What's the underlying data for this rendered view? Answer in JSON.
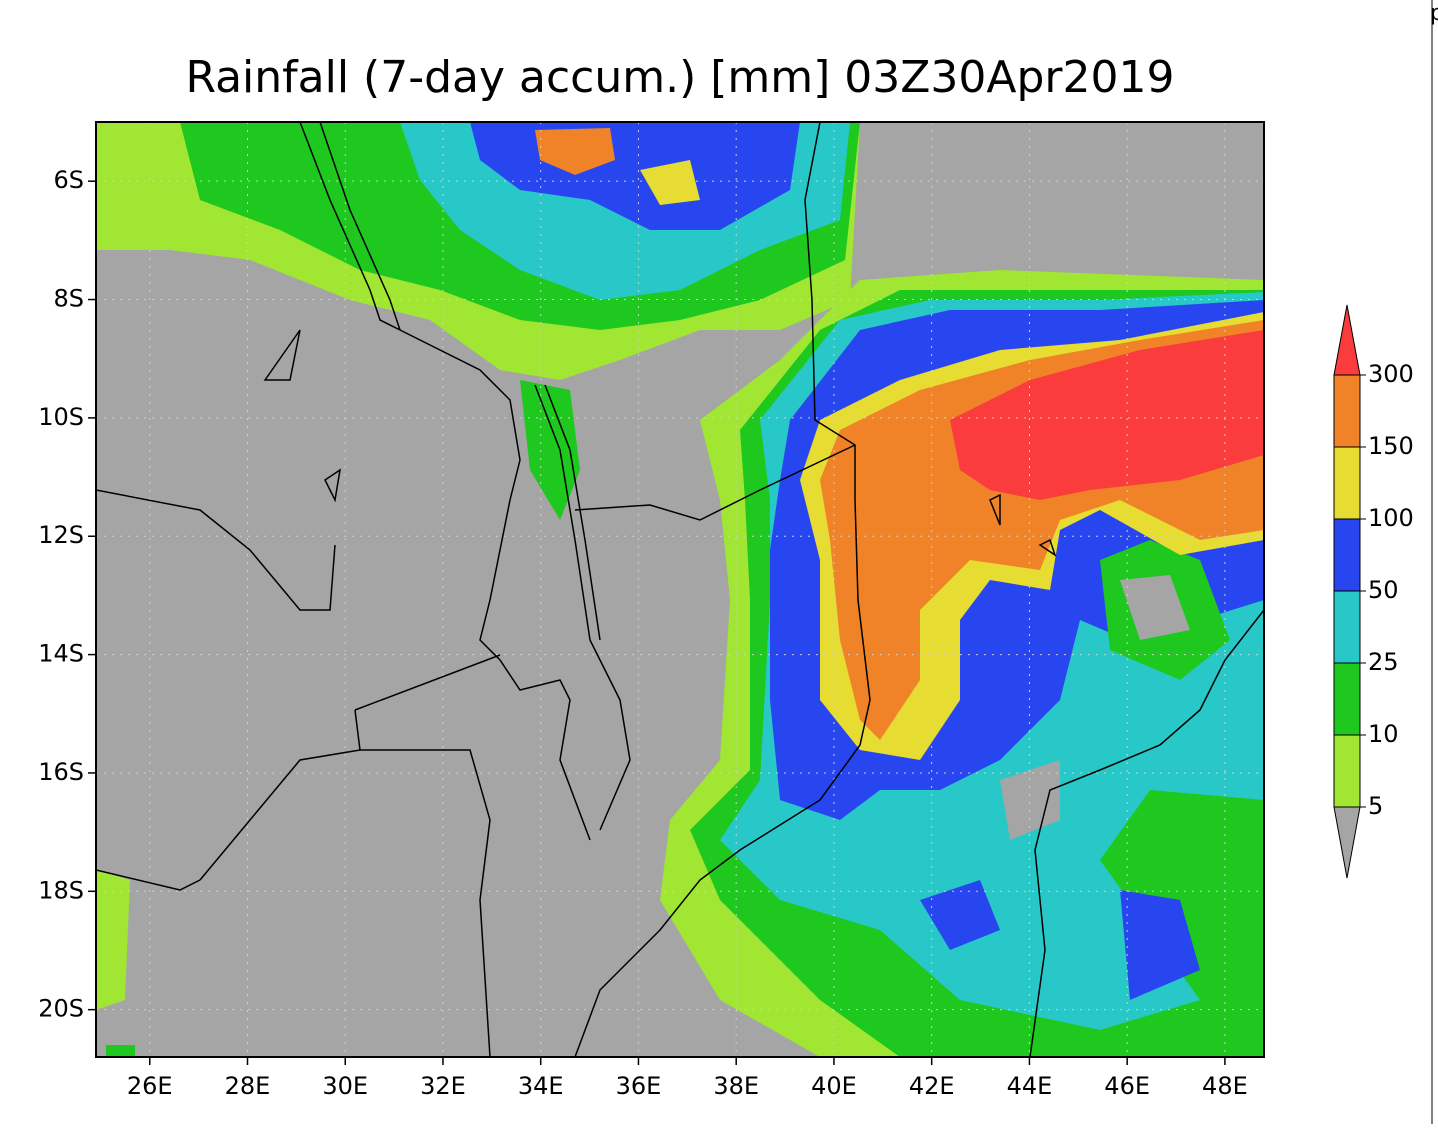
{
  "title": "Rainfall (7-day accum.) [mm] 03Z30Apr2019",
  "corner_text": "p",
  "map": {
    "xlim": [
      24.9,
      48.8
    ],
    "ylim": [
      -20.8,
      -5.0
    ],
    "lon_ticks": [
      {
        "value": 26,
        "label": "26E"
      },
      {
        "value": 28,
        "label": "28E"
      },
      {
        "value": 30,
        "label": "30E"
      },
      {
        "value": 32,
        "label": "32E"
      },
      {
        "value": 34,
        "label": "34E"
      },
      {
        "value": 36,
        "label": "36E"
      },
      {
        "value": 38,
        "label": "38E"
      },
      {
        "value": 40,
        "label": "40E"
      },
      {
        "value": 42,
        "label": "42E"
      },
      {
        "value": 44,
        "label": "44E"
      },
      {
        "value": 46,
        "label": "46E"
      },
      {
        "value": 48,
        "label": "48E"
      }
    ],
    "lat_ticks": [
      {
        "value": -6,
        "label": "6S"
      },
      {
        "value": -8,
        "label": "8S"
      },
      {
        "value": -10,
        "label": "10S"
      },
      {
        "value": -12,
        "label": "12S"
      },
      {
        "value": -14,
        "label": "14S"
      },
      {
        "value": -16,
        "label": "16S"
      },
      {
        "value": -18,
        "label": "18S"
      },
      {
        "value": -20,
        "label": "20S"
      }
    ]
  },
  "colorbar": {
    "levels": [
      5,
      10,
      25,
      50,
      100,
      150,
      300
    ],
    "colors": [
      "#a5a5a5",
      "#a0e632",
      "#1ec81e",
      "#28c8c8",
      "#2846f0",
      "#e6dc32",
      "#f08228",
      "#fa3c3c"
    ]
  }
}
